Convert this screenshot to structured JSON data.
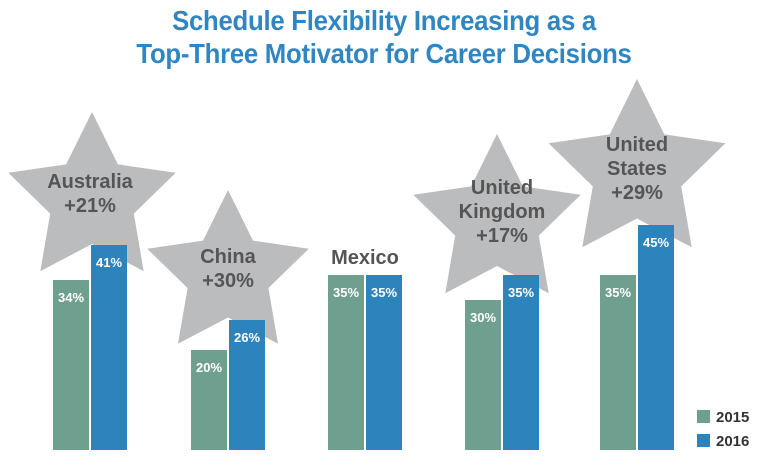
{
  "chart_data": {
    "type": "bar",
    "title_lines": [
      "Schedule Flexibility Increasing as a",
      "Top-Three Motivator for Career Decisions"
    ],
    "categories": [
      {
        "label_lines": [
          "Australia",
          "+21%"
        ],
        "star": true
      },
      {
        "label_lines": [
          "China",
          "+30%"
        ],
        "star": true
      },
      {
        "label_lines": [
          "Mexico"
        ],
        "star": false
      },
      {
        "label_lines": [
          "United",
          "Kingdom",
          "+17%"
        ],
        "star": true
      },
      {
        "label_lines": [
          "United",
          "States",
          "+29%"
        ],
        "star": true
      }
    ],
    "series": [
      {
        "name": "2015",
        "color": "#6f9f8f",
        "values": [
          34,
          20,
          35,
          30,
          35
        ],
        "data_labels": [
          "34%",
          "20%",
          "35%",
          "30%",
          "35%"
        ]
      },
      {
        "name": "2016",
        "color": "#2d84bd",
        "values": [
          41,
          26,
          35,
          35,
          45
        ],
        "data_labels": [
          "41%",
          "26%",
          "35%",
          "35%",
          "45%"
        ]
      }
    ],
    "ylim": [
      0,
      50
    ],
    "grid": false,
    "legend_position": "bottom-right",
    "colors": {
      "star_fill": "#bbbcbe",
      "label_text": "#555555",
      "title": "#2f86c2",
      "bar_label": "#ffffff"
    }
  }
}
